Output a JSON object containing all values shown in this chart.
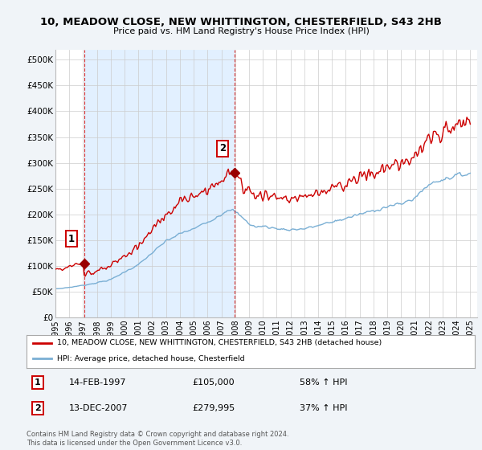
{
  "title1": "10, MEADOW CLOSE, NEW WHITTINGTON, CHESTERFIELD, S43 2HB",
  "title2": "Price paid vs. HM Land Registry's House Price Index (HPI)",
  "yticks": [
    0,
    50000,
    100000,
    150000,
    200000,
    250000,
    300000,
    350000,
    400000,
    450000,
    500000
  ],
  "ytick_labels": [
    "£0",
    "£50K",
    "£100K",
    "£150K",
    "£200K",
    "£250K",
    "£300K",
    "£350K",
    "£400K",
    "£450K",
    "£500K"
  ],
  "xlim_start": 1995.0,
  "xlim_end": 2025.5,
  "ylim_min": 0,
  "ylim_max": 520000,
  "hpi_color": "#7aafd4",
  "price_color": "#cc0000",
  "marker_color": "#990000",
  "sale1_year": 1997.12,
  "sale1_price": 105000,
  "sale2_year": 2007.95,
  "sale2_price": 279995,
  "shade_color": "#ddeeff",
  "legend_line1": "10, MEADOW CLOSE, NEW WHITTINGTON, CHESTERFIELD, S43 2HB (detached house)",
  "legend_line2": "HPI: Average price, detached house, Chesterfield",
  "table_row1_date": "14-FEB-1997",
  "table_row1_price": "£105,000",
  "table_row1_hpi": "58% ↑ HPI",
  "table_row2_date": "13-DEC-2007",
  "table_row2_price": "£279,995",
  "table_row2_hpi": "37% ↑ HPI",
  "footer": "Contains HM Land Registry data © Crown copyright and database right 2024.\nThis data is licensed under the Open Government Licence v3.0.",
  "background_color": "#f0f4f8",
  "plot_bg_color": "#ffffff",
  "grid_color": "#cccccc"
}
